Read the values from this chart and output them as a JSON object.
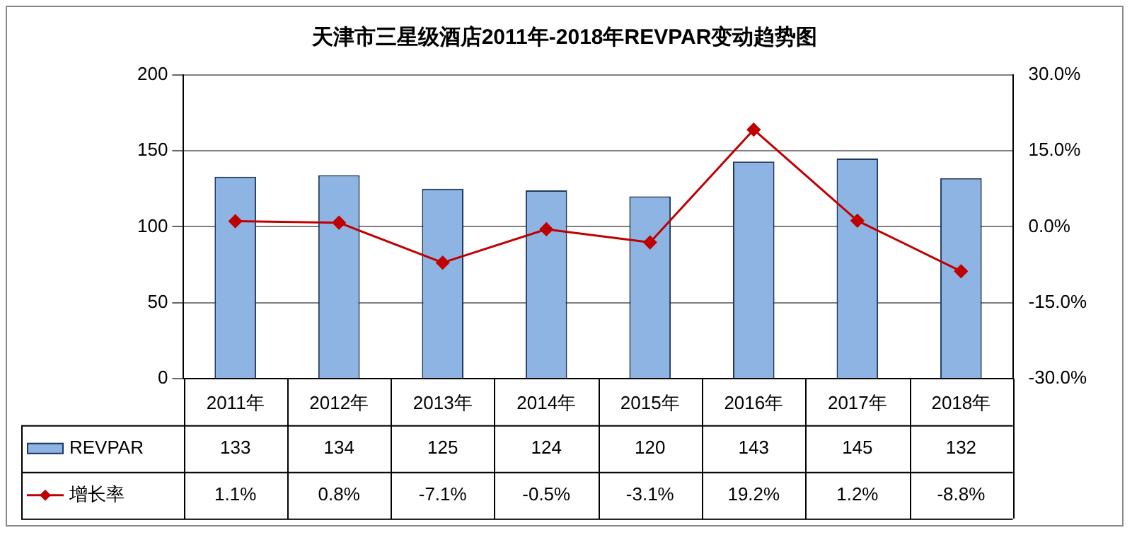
{
  "chart_data": {
    "type": "bar",
    "title": "天津市三星级酒店2011年-2018年REVPAR变动趋势图",
    "categories": [
      "2011年",
      "2012年",
      "2013年",
      "2014年",
      "2015年",
      "2016年",
      "2017年",
      "2018年"
    ],
    "series": [
      {
        "name": "REVPAR",
        "color": "#8db4e2",
        "values": [
          133,
          134,
          125,
          124,
          120,
          143,
          145,
          132
        ]
      },
      {
        "name": "增长率",
        "type": "line",
        "axis": "y2",
        "color": "#c00000",
        "marker": "diamond",
        "values": [
          1.1,
          0.8,
          -7.1,
          -0.5,
          -3.1,
          19.2,
          1.2,
          -8.8
        ],
        "value_labels": [
          "1.1%",
          "0.8%",
          "-7.1%",
          "-0.5%",
          "-3.1%",
          "19.2%",
          "1.2%",
          "-8.8%"
        ]
      }
    ],
    "ylim": [
      0,
      200
    ],
    "yticks": [
      0,
      50,
      100,
      150,
      200
    ],
    "y2lim": [
      -30,
      30
    ],
    "y2ticks": [
      {
        "value": -30,
        "label": "-30.0%"
      },
      {
        "value": -15,
        "label": "-15.0%"
      },
      {
        "value": 0,
        "label": "0.0%"
      },
      {
        "value": 15,
        "label": "15.0%"
      },
      {
        "value": 30,
        "label": "30.0%"
      }
    ],
    "grid": "y",
    "legend": "bottom",
    "data_labels": true
  }
}
